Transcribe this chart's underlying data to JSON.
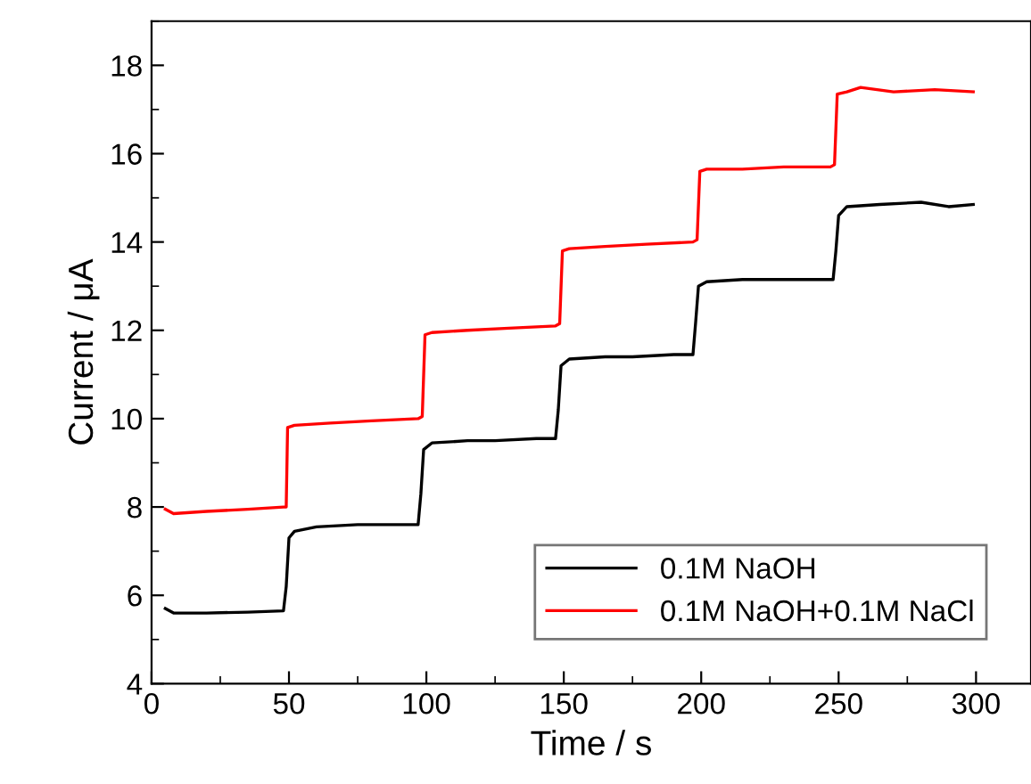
{
  "chart_data": {
    "type": "line",
    "xlabel": "Time / s",
    "ylabel": "Current / μA",
    "xlim": [
      0,
      320
    ],
    "xticks": [
      0,
      50,
      100,
      150,
      200,
      250,
      300
    ],
    "ylim": [
      4,
      19
    ],
    "yticks": [
      4,
      6,
      8,
      10,
      12,
      14,
      16,
      18
    ],
    "grid": false,
    "legend": "bottom right",
    "marker": "none",
    "line_style": "solid",
    "series": [
      {
        "name": "0.1M NaOH",
        "color": "#000000",
        "x": [
          5,
          8,
          20,
          35,
          48,
          49,
          50,
          52,
          60,
          75,
          90,
          97,
          98,
          99,
          102,
          115,
          125,
          140,
          147,
          148,
          149,
          152,
          165,
          175,
          190,
          197,
          198,
          199,
          202,
          215,
          225,
          240,
          248,
          249,
          250,
          253,
          265,
          280,
          290,
          299
        ],
        "values": [
          5.7,
          5.6,
          5.6,
          5.62,
          5.65,
          6.2,
          7.3,
          7.45,
          7.55,
          7.6,
          7.6,
          7.6,
          8.3,
          9.3,
          9.45,
          9.5,
          9.5,
          9.55,
          9.55,
          10.2,
          11.2,
          11.35,
          11.4,
          11.4,
          11.45,
          11.45,
          12.2,
          13.0,
          13.1,
          13.15,
          13.15,
          13.15,
          13.15,
          13.8,
          14.6,
          14.8,
          14.85,
          14.9,
          14.8,
          14.85
        ]
      },
      {
        "name": "0.1M NaOH+0.1M NaCl",
        "color": "#ff0000",
        "x": [
          5,
          8,
          20,
          35,
          48,
          49,
          49.5,
          52,
          65,
          80,
          97,
          98.5,
          99.5,
          102,
          115,
          130,
          147,
          148.5,
          149.5,
          152,
          165,
          180,
          197,
          198.5,
          199.5,
          202,
          215,
          230,
          247,
          248.5,
          249.5,
          253,
          258,
          270,
          285,
          299
        ],
        "values": [
          7.95,
          7.85,
          7.9,
          7.95,
          8.0,
          8.0,
          9.8,
          9.85,
          9.9,
          9.95,
          10.0,
          10.05,
          11.9,
          11.95,
          12.0,
          12.05,
          12.1,
          12.15,
          13.8,
          13.85,
          13.9,
          13.95,
          14.0,
          14.05,
          15.6,
          15.65,
          15.65,
          15.7,
          15.7,
          15.75,
          17.35,
          17.4,
          17.5,
          17.4,
          17.45,
          17.4
        ]
      }
    ]
  }
}
